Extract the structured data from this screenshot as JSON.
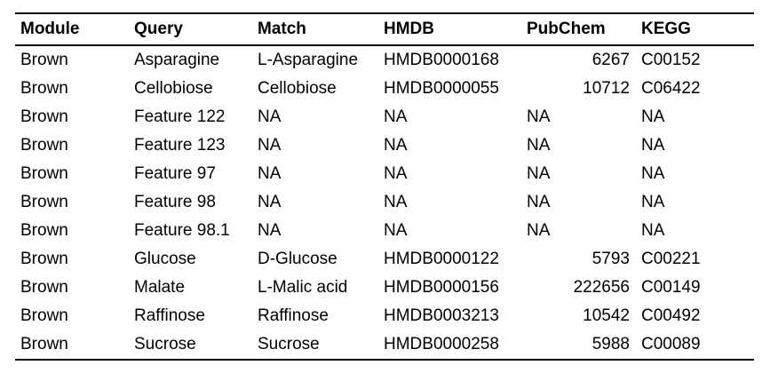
{
  "table": {
    "headers": [
      "Module",
      "Query",
      "Match",
      "HMDB",
      "PubChem",
      "KEGG"
    ],
    "rows": [
      [
        "Brown",
        "Asparagine",
        "L-Asparagine",
        "HMDB0000168",
        "6267",
        "C00152"
      ],
      [
        "Brown",
        "Cellobiose",
        "Cellobiose",
        "HMDB0000055",
        "10712",
        "C06422"
      ],
      [
        "Brown",
        "Feature 122",
        "NA",
        "NA",
        "NA",
        "NA"
      ],
      [
        "Brown",
        "Feature 123",
        "NA",
        "NA",
        "NA",
        "NA"
      ],
      [
        "Brown",
        "Feature 97",
        "NA",
        "NA",
        "NA",
        "NA"
      ],
      [
        "Brown",
        "Feature 98",
        "NA",
        "NA",
        "NA",
        "NA"
      ],
      [
        "Brown",
        "Feature 98.1",
        "NA",
        "NA",
        "NA",
        "NA"
      ],
      [
        "Brown",
        "Glucose",
        "D-Glucose",
        "HMDB0000122",
        "5793",
        "C00221"
      ],
      [
        "Brown",
        "Malate",
        "L-Malic acid",
        "HMDB0000156",
        "222656",
        "C00149"
      ],
      [
        "Brown",
        "Raffinose",
        "Raffinose",
        "HMDB0003213",
        "10542",
        "C00492"
      ],
      [
        "Brown",
        "Sucrose",
        "Sucrose",
        "HMDB0000258",
        "5988",
        "C00089"
      ]
    ]
  }
}
